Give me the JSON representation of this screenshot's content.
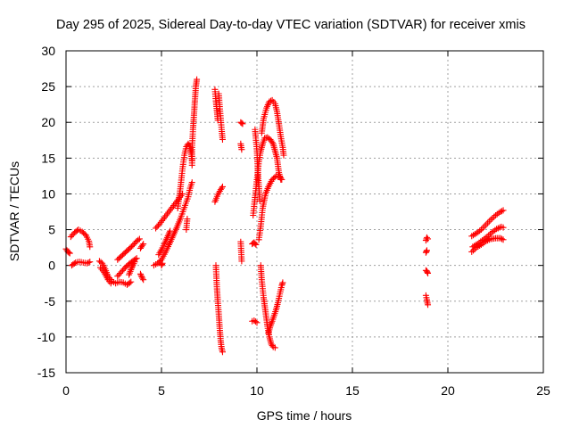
{
  "chart_data": {
    "type": "scatter",
    "title": "Day 295 of 2025, Sidereal Day-to-day VTEC variation (SDTVAR) for receiver xmis",
    "xlabel": "GPS time / hours",
    "ylabel": "SDTVAR / TECUs",
    "xlim": [
      0,
      25
    ],
    "ylim": [
      -15,
      30
    ],
    "xticks": [
      0,
      5,
      10,
      15,
      20,
      25
    ],
    "yticks": [
      -15,
      -10,
      -5,
      0,
      5,
      10,
      15,
      20,
      25,
      30
    ],
    "grid": true,
    "marker": "+",
    "series": [
      {
        "name": "SDTVAR",
        "color": "#ff0000",
        "tracks": [
          [
            [
              0.0,
              2.3
            ],
            [
              0.1,
              1.9
            ],
            [
              0.2,
              1.7
            ]
          ],
          [
            [
              0.25,
              4.0
            ],
            [
              0.45,
              4.6
            ],
            [
              0.65,
              5.0
            ],
            [
              0.85,
              4.7
            ],
            [
              1.05,
              4.2
            ],
            [
              1.2,
              3.4
            ],
            [
              1.25,
              2.6
            ]
          ],
          [
            [
              0.3,
              0.0
            ],
            [
              0.5,
              0.4
            ],
            [
              0.7,
              0.5
            ],
            [
              0.9,
              0.4
            ],
            [
              1.1,
              0.3
            ],
            [
              1.25,
              0.5
            ]
          ],
          [
            [
              1.75,
              0.6
            ],
            [
              1.9,
              0.3
            ],
            [
              2.05,
              -0.5
            ],
            [
              2.2,
              -1.5
            ],
            [
              2.4,
              -2.2
            ],
            [
              2.6,
              -2.5
            ],
            [
              2.8,
              -2.3
            ],
            [
              3.0,
              -2.4
            ],
            [
              3.2,
              -2.7
            ],
            [
              3.4,
              -2.3
            ]
          ],
          [
            [
              1.8,
              -0.3
            ],
            [
              2.0,
              -1.0
            ],
            [
              2.2,
              -2.0
            ],
            [
              2.35,
              -2.5
            ]
          ],
          [
            [
              2.7,
              0.8
            ],
            [
              2.9,
              1.3
            ],
            [
              3.1,
              1.8
            ],
            [
              3.3,
              2.3
            ],
            [
              3.5,
              2.8
            ],
            [
              3.7,
              3.4
            ],
            [
              3.85,
              3.7
            ]
          ],
          [
            [
              2.7,
              -1.5
            ],
            [
              2.9,
              -0.9
            ],
            [
              3.1,
              -0.3
            ],
            [
              3.3,
              0.2
            ],
            [
              3.5,
              0.6
            ],
            [
              3.7,
              1.0
            ]
          ],
          [
            [
              3.3,
              -1.3
            ],
            [
              3.4,
              -0.6
            ],
            [
              3.5,
              0.0
            ],
            [
              3.6,
              0.5
            ]
          ],
          [
            [
              3.9,
              -1.2
            ],
            [
              4.0,
              -1.8
            ],
            [
              4.05,
              -2.0
            ]
          ],
          [
            [
              3.9,
              2.4
            ],
            [
              4.0,
              2.8
            ],
            [
              4.05,
              3.0
            ]
          ],
          [
            [
              4.6,
              0.0
            ],
            [
              4.8,
              0.3
            ],
            [
              5.0,
              0.8
            ],
            [
              5.2,
              1.8
            ],
            [
              5.4,
              2.9
            ],
            [
              5.6,
              4.1
            ],
            [
              5.8,
              5.3
            ],
            [
              6.0,
              6.6
            ],
            [
              6.2,
              8.1
            ],
            [
              6.4,
              9.6
            ],
            [
              6.5,
              10.8
            ],
            [
              6.6,
              11.6
            ]
          ],
          [
            [
              4.7,
              5.2
            ],
            [
              4.9,
              5.8
            ],
            [
              5.1,
              6.5
            ],
            [
              5.3,
              7.2
            ],
            [
              5.5,
              7.9
            ],
            [
              5.7,
              8.6
            ],
            [
              5.9,
              9.3
            ],
            [
              6.1,
              10.0
            ]
          ],
          [
            [
              4.85,
              1.5
            ],
            [
              5.0,
              2.2
            ],
            [
              5.15,
              3.0
            ],
            [
              5.3,
              3.9
            ],
            [
              5.45,
              4.8
            ]
          ],
          [
            [
              5.0,
              0.0
            ],
            [
              5.05,
              0.3
            ]
          ],
          [
            [
              5.85,
              8.0
            ],
            [
              6.0,
              11.0
            ],
            [
              6.1,
              13.5
            ],
            [
              6.2,
              15.4
            ],
            [
              6.3,
              16.6
            ],
            [
              6.4,
              17.0
            ],
            [
              6.5,
              16.6
            ],
            [
              6.55,
              15.8
            ],
            [
              6.6,
              14.7
            ]
          ],
          [
            [
              6.3,
              5.0
            ],
            [
              6.35,
              6.5
            ]
          ],
          [
            [
              6.6,
              14.0
            ],
            [
              6.6,
              16.5
            ],
            [
              6.65,
              19.0
            ],
            [
              6.7,
              21.0
            ],
            [
              6.75,
              23.0
            ],
            [
              6.8,
              25.0
            ],
            [
              6.85,
              26.0
            ]
          ],
          [
            [
              7.8,
              24.6
            ],
            [
              7.85,
              23.0
            ],
            [
              7.9,
              21.7
            ],
            [
              7.95,
              20.3
            ]
          ],
          [
            [
              8.0,
              24.0
            ],
            [
              8.05,
              22.2
            ],
            [
              8.1,
              20.6
            ],
            [
              8.15,
              19.0
            ],
            [
              8.2,
              17.6
            ]
          ],
          [
            [
              7.8,
              8.9
            ],
            [
              7.95,
              9.9
            ],
            [
              8.1,
              10.6
            ],
            [
              8.2,
              11.0
            ]
          ],
          [
            [
              7.85,
              0.0
            ],
            [
              7.9,
              -3.0
            ],
            [
              7.95,
              -5.0
            ],
            [
              8.0,
              -6.8
            ],
            [
              8.05,
              -8.8
            ],
            [
              8.1,
              -10.5
            ],
            [
              8.15,
              -11.6
            ],
            [
              8.2,
              -12.1
            ]
          ],
          [
            [
              9.15,
              20.0
            ],
            [
              9.25,
              19.8
            ]
          ],
          [
            [
              9.15,
              17.0
            ],
            [
              9.2,
              16.2
            ]
          ],
          [
            [
              9.15,
              3.3
            ],
            [
              9.2,
              0.6
            ]
          ],
          [
            [
              9.75,
              -7.8
            ],
            [
              9.85,
              -7.7
            ],
            [
              10.0,
              -8.0
            ]
          ],
          [
            [
              9.75,
              3.0
            ],
            [
              9.85,
              3.2
            ],
            [
              9.95,
              2.9
            ]
          ],
          [
            [
              9.8,
              7.0
            ],
            [
              9.9,
              9.5
            ],
            [
              10.0,
              12.0
            ],
            [
              10.1,
              14.5
            ],
            [
              10.2,
              16.0
            ],
            [
              10.3,
              17.0
            ],
            [
              10.4,
              17.8
            ],
            [
              10.55,
              17.9
            ],
            [
              10.7,
              17.6
            ],
            [
              10.85,
              17.0
            ],
            [
              10.95,
              16.0
            ],
            [
              11.05,
              15.0
            ],
            [
              11.15,
              13.0
            ],
            [
              11.25,
              12.0
            ]
          ],
          [
            [
              9.9,
              19.0
            ],
            [
              10.0,
              16.0
            ],
            [
              10.05,
              13.0
            ],
            [
              10.1,
              11.0
            ],
            [
              10.15,
              9.0
            ]
          ],
          [
            [
              10.1,
              3.6
            ],
            [
              10.2,
              5.5
            ],
            [
              10.3,
              8.0
            ],
            [
              10.45,
              10.0
            ],
            [
              10.6,
              11.0
            ],
            [
              10.8,
              12.0
            ],
            [
              11.0,
              12.5
            ],
            [
              11.2,
              12.4
            ],
            [
              11.3,
              12.0
            ]
          ],
          [
            [
              10.2,
              0.0
            ],
            [
              10.25,
              -2.0
            ],
            [
              10.35,
              -4.5
            ],
            [
              10.45,
              -6.5
            ],
            [
              10.55,
              -8.5
            ],
            [
              10.65,
              -10.0
            ],
            [
              10.75,
              -11.0
            ],
            [
              10.85,
              -11.4
            ],
            [
              10.95,
              -11.5
            ]
          ],
          [
            [
              10.25,
              18.5
            ],
            [
              10.35,
              20.5
            ],
            [
              10.5,
              22.0
            ],
            [
              10.65,
              22.9
            ],
            [
              10.8,
              23.1
            ],
            [
              10.95,
              22.6
            ],
            [
              11.05,
              21.5
            ],
            [
              11.15,
              19.8
            ],
            [
              11.25,
              18.0
            ],
            [
              11.35,
              16.5
            ],
            [
              11.4,
              15.4
            ]
          ],
          [
            [
              10.6,
              -9.5
            ],
            [
              10.7,
              -8.5
            ],
            [
              10.8,
              -7.8
            ],
            [
              10.9,
              -7.0
            ],
            [
              11.0,
              -6.2
            ],
            [
              11.1,
              -5.2
            ],
            [
              11.2,
              -4.0
            ],
            [
              11.3,
              -2.8
            ],
            [
              11.35,
              -2.4
            ]
          ],
          [
            [
              18.85,
              3.5
            ],
            [
              18.9,
              3.9
            ],
            [
              18.95,
              3.7
            ]
          ],
          [
            [
              18.85,
              1.8
            ],
            [
              18.9,
              2.1
            ]
          ],
          [
            [
              18.85,
              -0.7
            ],
            [
              18.9,
              -0.8
            ],
            [
              18.95,
              -1.1
            ]
          ],
          [
            [
              18.85,
              -4.2
            ],
            [
              18.9,
              -4.8
            ],
            [
              18.95,
              -5.5
            ]
          ],
          [
            [
              21.25,
              1.9
            ],
            [
              21.5,
              2.5
            ],
            [
              21.75,
              2.9
            ],
            [
              22.0,
              3.4
            ],
            [
              22.25,
              3.7
            ],
            [
              22.5,
              3.8
            ],
            [
              22.75,
              3.8
            ],
            [
              22.9,
              3.6
            ]
          ],
          [
            [
              21.25,
              4.1
            ],
            [
              21.5,
              4.5
            ],
            [
              21.75,
              5.0
            ],
            [
              22.0,
              5.7
            ],
            [
              22.25,
              6.4
            ],
            [
              22.5,
              7.0
            ],
            [
              22.75,
              7.5
            ],
            [
              22.9,
              7.7
            ]
          ],
          [
            [
              21.3,
              2.6
            ],
            [
              21.55,
              3.0
            ],
            [
              21.8,
              3.5
            ],
            [
              22.05,
              4.0
            ],
            [
              22.3,
              4.6
            ],
            [
              22.55,
              5.1
            ],
            [
              22.8,
              5.4
            ],
            [
              22.9,
              5.3
            ]
          ]
        ]
      }
    ]
  }
}
